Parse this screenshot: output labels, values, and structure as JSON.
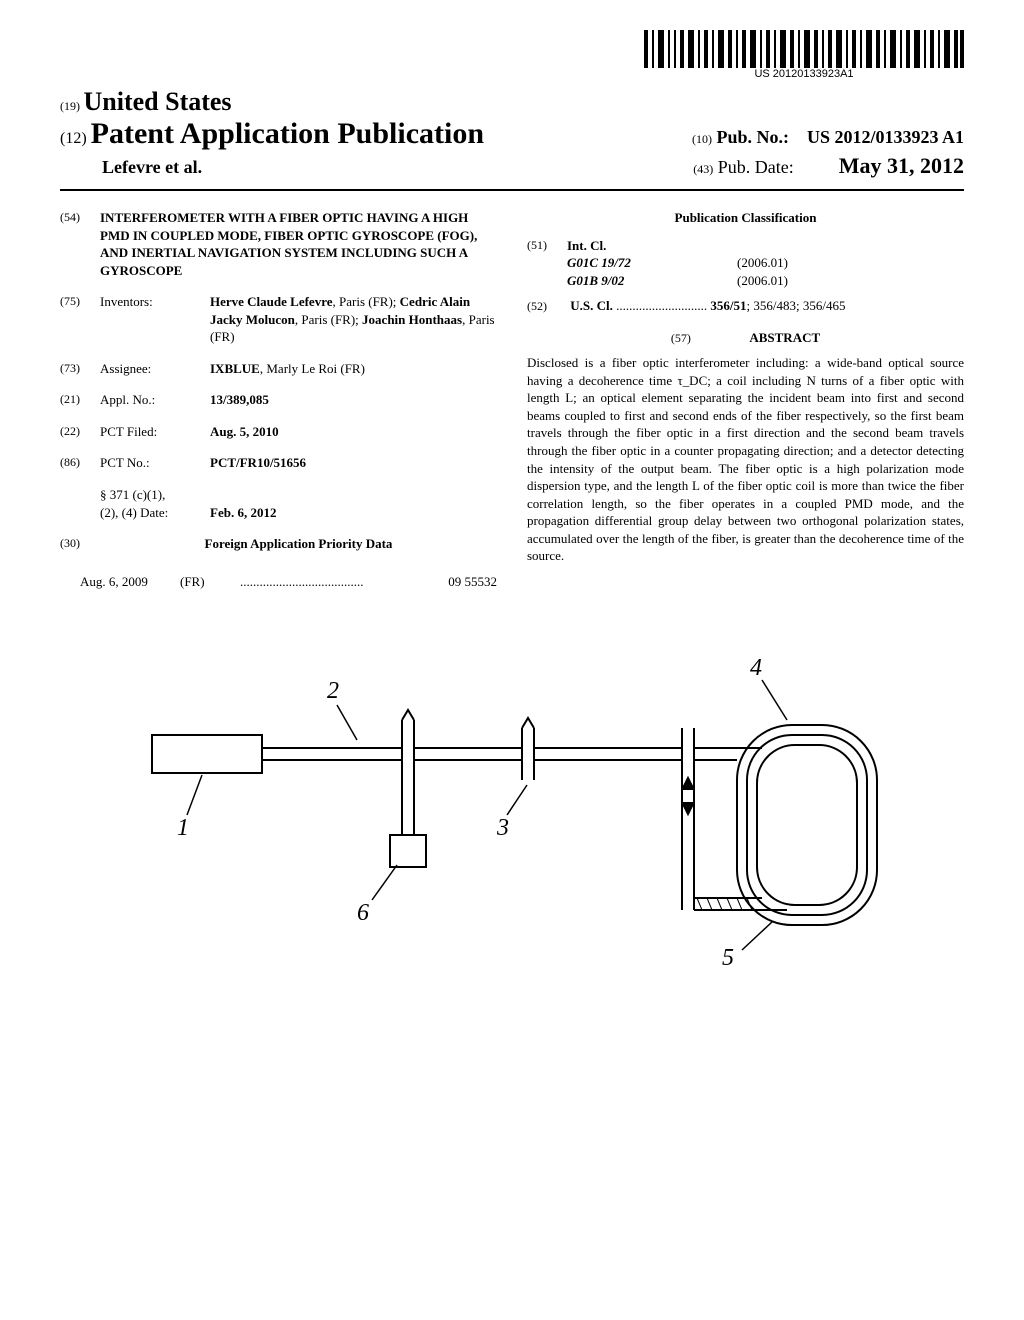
{
  "barcode_text": "US 20120133923A1",
  "header": {
    "country_code": "(19)",
    "country": "United States",
    "pub_type_code": "(12)",
    "pub_type": "Patent Application Publication",
    "authors": "Lefevre et al.",
    "pub_no_code": "(10)",
    "pub_no_label": "Pub. No.:",
    "pub_no": "US 2012/0133923 A1",
    "pub_date_code": "(43)",
    "pub_date_label": "Pub. Date:",
    "pub_date": "May 31, 2012"
  },
  "left": {
    "title_code": "(54)",
    "title": "INTERFEROMETER WITH A FIBER OPTIC HAVING A HIGH PMD IN COUPLED MODE, FIBER OPTIC GYROSCOPE (FOG), AND INERTIAL NAVIGATION SYSTEM INCLUDING SUCH A GYROSCOPE",
    "inventors_code": "(75)",
    "inventors_label": "Inventors:",
    "inventors_html": "<b>Herve Claude Lefevre</b>, Paris (FR); <b>Cedric Alain Jacky Molucon</b>, Paris (FR); <b>Joachin Honthaas</b>, Paris (FR)",
    "assignee_code": "(73)",
    "assignee_label": "Assignee:",
    "assignee_html": "<b>IXBLUE</b>, Marly Le Roi (FR)",
    "applno_code": "(21)",
    "applno_label": "Appl. No.:",
    "applno": "13/389,085",
    "pctfiled_code": "(22)",
    "pctfiled_label": "PCT Filed:",
    "pctfiled": "Aug. 5, 2010",
    "pctno_code": "(86)",
    "pctno_label": "PCT No.:",
    "pctno": "PCT/FR10/51656",
    "s371_label": "§ 371 (c)(1),\n(2), (4) Date:",
    "s371_date": "Feb. 6, 2012",
    "priority_code": "(30)",
    "priority_heading": "Foreign Application Priority Data",
    "priority_date": "Aug. 6, 2009",
    "priority_country": "(FR)",
    "priority_num": "09 55532"
  },
  "right": {
    "classification_heading": "Publication Classification",
    "intcl_code": "(51)",
    "intcl_label": "Int. Cl.",
    "intcl": [
      {
        "code": "G01C 19/72",
        "year": "(2006.01)"
      },
      {
        "code": "G01B 9/02",
        "year": "(2006.01)"
      }
    ],
    "uscl_code": "(52)",
    "uscl_label": "U.S. Cl.",
    "uscl_values": "356/51; 356/483; 356/465",
    "abstract_code": "(57)",
    "abstract_label": "ABSTRACT",
    "abstract": "Disclosed is a fiber optic interferometer including: a wide-band optical source having a decoherence time τ_DC; a coil including N turns of a fiber optic with length L; an optical element separating the incident beam into first and second beams coupled to first and second ends of the fiber respectively, so the first beam travels through the fiber optic in a first direction and the second beam travels through the fiber optic in a counter propagating direction; and a detector detecting the intensity of the output beam. The fiber optic is a high polarization mode dispersion type, and the length L of the fiber optic coil is more than twice the fiber correlation length, so the fiber operates in a coupled PMD mode, and the propagation differential group delay between two orthogonal polarization states, accumulated over the length of the fiber, is greater than the decoherence time of the source."
  },
  "figure": {
    "labels": [
      "1",
      "2",
      "3",
      "4",
      "5",
      "6"
    ]
  }
}
